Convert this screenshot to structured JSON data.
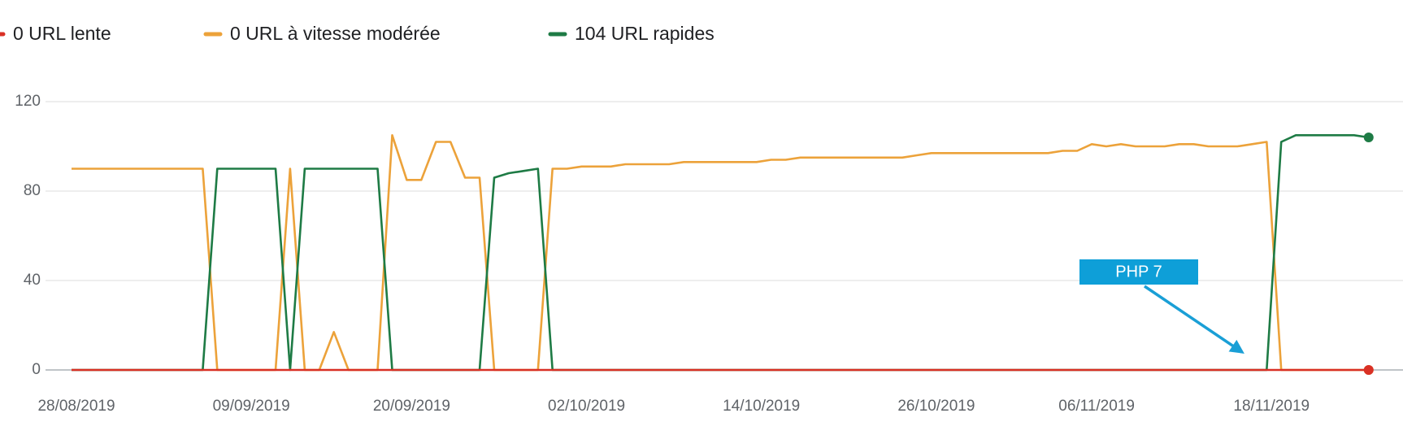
{
  "chart_data": {
    "type": "line",
    "categories": [
      "28/08/2019",
      null,
      null,
      null,
      null,
      null,
      null,
      null,
      null,
      null,
      null,
      null,
      "09/09/2019",
      null,
      null,
      null,
      null,
      null,
      null,
      null,
      null,
      null,
      null,
      "20/09/2019",
      null,
      null,
      null,
      null,
      null,
      null,
      null,
      null,
      null,
      null,
      null,
      "02/10/2019",
      null,
      null,
      null,
      null,
      null,
      null,
      null,
      null,
      null,
      null,
      null,
      "14/10/2019",
      null,
      null,
      null,
      null,
      null,
      null,
      null,
      null,
      null,
      null,
      null,
      "26/10/2019",
      null,
      null,
      null,
      null,
      null,
      null,
      null,
      null,
      null,
      null,
      "06/11/2019",
      null,
      null,
      null,
      null,
      null,
      null,
      null,
      null,
      null,
      null,
      null,
      "18/11/2019",
      null,
      null,
      null,
      null,
      null,
      null,
      null
    ],
    "series": [
      {
        "name": "0 URL lente",
        "color": "#d93025",
        "values": [
          0,
          0,
          0,
          0,
          0,
          0,
          0,
          0,
          0,
          0,
          0,
          0,
          0,
          0,
          0,
          0,
          0,
          0,
          0,
          0,
          0,
          0,
          0,
          0,
          0,
          0,
          0,
          0,
          0,
          0,
          0,
          0,
          0,
          0,
          0,
          0,
          0,
          0,
          0,
          0,
          0,
          0,
          0,
          0,
          0,
          0,
          0,
          0,
          0,
          0,
          0,
          0,
          0,
          0,
          0,
          0,
          0,
          0,
          0,
          0,
          0,
          0,
          0,
          0,
          0,
          0,
          0,
          0,
          0,
          0,
          0,
          0,
          0,
          0,
          0,
          0,
          0,
          0,
          0,
          0,
          0,
          0,
          0,
          0,
          0,
          0,
          0,
          0,
          0,
          0
        ]
      },
      {
        "name": "0 URL à vitesse modérée",
        "color": "#eca23a",
        "values": [
          90,
          90,
          90,
          90,
          90,
          90,
          90,
          90,
          90,
          90,
          0,
          0,
          0,
          0,
          0,
          90,
          0,
          0,
          17,
          0,
          0,
          0,
          105,
          85,
          85,
          102,
          102,
          86,
          86,
          0,
          0,
          0,
          0,
          90,
          90,
          91,
          91,
          91,
          92,
          92,
          92,
          92,
          93,
          93,
          93,
          93,
          93,
          93,
          94,
          94,
          95,
          95,
          95,
          95,
          95,
          95,
          95,
          95,
          96,
          97,
          97,
          97,
          97,
          97,
          97,
          97,
          97,
          97,
          98,
          98,
          101,
          100,
          101,
          100,
          100,
          100,
          101,
          101,
          100,
          100,
          100,
          101,
          102,
          0,
          0,
          0,
          0,
          0,
          0,
          0
        ]
      },
      {
        "name": "104 URL rapides",
        "color": "#1e7b45",
        "values": [
          0,
          0,
          0,
          0,
          0,
          0,
          0,
          0,
          0,
          0,
          90,
          90,
          90,
          90,
          90,
          0,
          90,
          90,
          90,
          90,
          90,
          90,
          0,
          0,
          0,
          0,
          0,
          0,
          0,
          86,
          88,
          89,
          90,
          0,
          0,
          0,
          0,
          0,
          0,
          0,
          0,
          0,
          0,
          0,
          0,
          0,
          0,
          0,
          0,
          0,
          0,
          0,
          0,
          0,
          0,
          0,
          0,
          0,
          0,
          0,
          0,
          0,
          0,
          0,
          0,
          0,
          0,
          0,
          0,
          0,
          0,
          0,
          0,
          0,
          0,
          0,
          0,
          0,
          0,
          0,
          0,
          0,
          0,
          102,
          105,
          105,
          105,
          105,
          105,
          104
        ]
      }
    ],
    "ylim": [
      0,
      120
    ],
    "yticks": [
      0,
      40,
      80,
      120
    ],
    "grid": true,
    "annotation": "PHP 7"
  }
}
